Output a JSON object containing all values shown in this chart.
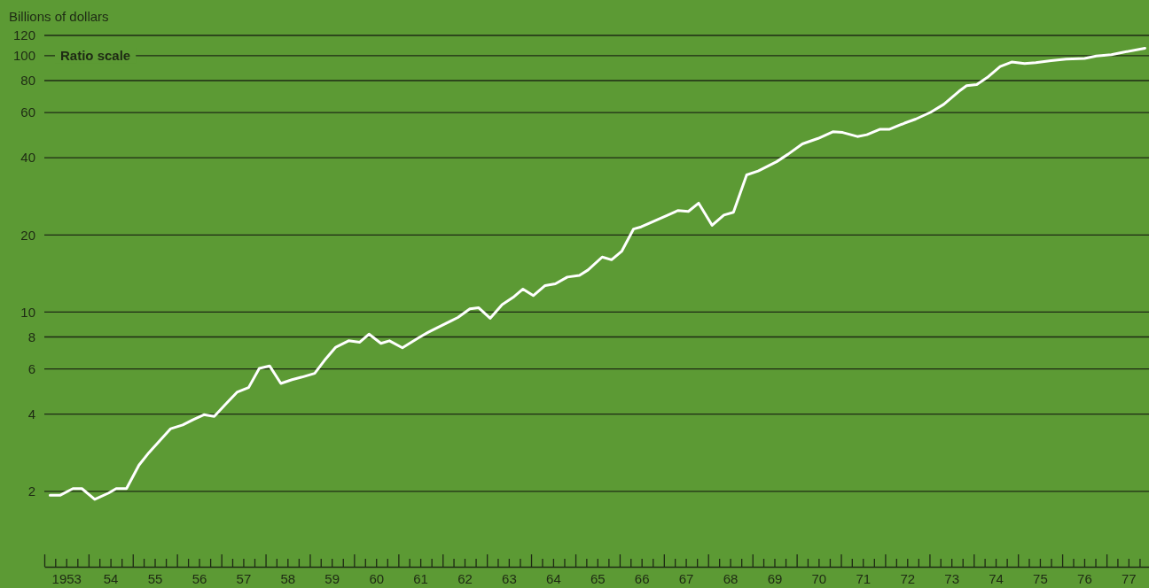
{
  "chart_data": {
    "type": "line",
    "ylabel": "Billions of dollars",
    "annotations": [
      "Ratio scale"
    ],
    "log": true,
    "grid": "y",
    "marker": "none",
    "line_style": "solid",
    "xlim": [
      "1953-01-01",
      "1978-01-01"
    ],
    "ylim": [
      1,
      120
    ],
    "yticks": [
      2,
      4,
      6,
      8,
      10,
      20,
      40,
      60,
      80,
      100,
      120
    ],
    "xticks": [
      {
        "value": "1953-01-01",
        "label": null
      },
      {
        "value": "1953-04-01",
        "label": null
      },
      {
        "value": "1953-07-01",
        "label": "1953"
      },
      {
        "value": "1953-10-01",
        "label": null
      },
      {
        "value": "1954-01-01",
        "label": null
      },
      {
        "value": "1954-04-01",
        "label": null
      },
      {
        "value": "1954-07-01",
        "label": "54"
      },
      {
        "value": "1954-10-01",
        "label": null
      },
      {
        "value": "1955-01-01",
        "label": null
      },
      {
        "value": "1955-04-01",
        "label": null
      },
      {
        "value": "1955-07-01",
        "label": "55"
      },
      {
        "value": "1955-10-01",
        "label": null
      },
      {
        "value": "1956-01-01",
        "label": null
      },
      {
        "value": "1956-04-01",
        "label": null
      },
      {
        "value": "1956-07-01",
        "label": "56"
      },
      {
        "value": "1956-10-01",
        "label": null
      },
      {
        "value": "1957-01-01",
        "label": null
      },
      {
        "value": "1957-04-01",
        "label": null
      },
      {
        "value": "1957-07-01",
        "label": "57"
      },
      {
        "value": "1957-10-01",
        "label": null
      },
      {
        "value": "1958-01-01",
        "label": null
      },
      {
        "value": "1958-04-01",
        "label": null
      },
      {
        "value": "1958-07-01",
        "label": "58"
      },
      {
        "value": "1958-10-01",
        "label": null
      },
      {
        "value": "1959-01-01",
        "label": null
      },
      {
        "value": "1959-04-01",
        "label": null
      },
      {
        "value": "1959-07-01",
        "label": "59"
      },
      {
        "value": "1959-10-01",
        "label": null
      },
      {
        "value": "1960-01-01",
        "label": null
      },
      {
        "value": "1960-04-01",
        "label": null
      },
      {
        "value": "1960-07-01",
        "label": "60"
      },
      {
        "value": "1960-10-01",
        "label": null
      },
      {
        "value": "1961-01-01",
        "label": null
      },
      {
        "value": "1961-04-01",
        "label": null
      },
      {
        "value": "1961-07-01",
        "label": "61"
      },
      {
        "value": "1961-10-01",
        "label": null
      },
      {
        "value": "1962-01-01",
        "label": null
      },
      {
        "value": "1962-04-01",
        "label": null
      },
      {
        "value": "1962-07-01",
        "label": "62"
      },
      {
        "value": "1962-10-01",
        "label": null
      },
      {
        "value": "1963-01-01",
        "label": null
      },
      {
        "value": "1963-04-01",
        "label": null
      },
      {
        "value": "1963-07-01",
        "label": "63"
      },
      {
        "value": "1963-10-01",
        "label": null
      },
      {
        "value": "1964-01-01",
        "label": null
      },
      {
        "value": "1964-04-01",
        "label": null
      },
      {
        "value": "1964-07-01",
        "label": "64"
      },
      {
        "value": "1964-10-01",
        "label": null
      },
      {
        "value": "1965-01-01",
        "label": null
      },
      {
        "value": "1965-04-01",
        "label": null
      },
      {
        "value": "1965-07-01",
        "label": "65"
      },
      {
        "value": "1965-10-01",
        "label": null
      },
      {
        "value": "1966-01-01",
        "label": null
      },
      {
        "value": "1966-04-01",
        "label": null
      },
      {
        "value": "1966-07-01",
        "label": "66"
      },
      {
        "value": "1966-10-01",
        "label": null
      },
      {
        "value": "1967-01-01",
        "label": null
      },
      {
        "value": "1967-04-01",
        "label": null
      },
      {
        "value": "1967-07-01",
        "label": "67"
      },
      {
        "value": "1967-10-01",
        "label": null
      },
      {
        "value": "1968-01-01",
        "label": null
      },
      {
        "value": "1968-04-01",
        "label": null
      },
      {
        "value": "1968-07-01",
        "label": "68"
      },
      {
        "value": "1968-10-01",
        "label": null
      },
      {
        "value": "1969-01-01",
        "label": null
      },
      {
        "value": "1969-04-01",
        "label": null
      },
      {
        "value": "1969-07-01",
        "label": "69"
      },
      {
        "value": "1969-10-01",
        "label": null
      },
      {
        "value": "1970-01-01",
        "label": null
      },
      {
        "value": "1970-04-01",
        "label": null
      },
      {
        "value": "1970-07-01",
        "label": "70"
      },
      {
        "value": "1970-10-01",
        "label": null
      },
      {
        "value": "1971-01-01",
        "label": null
      },
      {
        "value": "1971-04-01",
        "label": null
      },
      {
        "value": "1971-07-01",
        "label": "71"
      },
      {
        "value": "1971-10-01",
        "label": null
      },
      {
        "value": "1972-01-01",
        "label": null
      },
      {
        "value": "1972-04-01",
        "label": null
      },
      {
        "value": "1972-07-01",
        "label": "72"
      },
      {
        "value": "1972-10-01",
        "label": null
      },
      {
        "value": "1973-01-01",
        "label": null
      },
      {
        "value": "1973-04-01",
        "label": null
      },
      {
        "value": "1973-07-01",
        "label": "73"
      },
      {
        "value": "1973-10-01",
        "label": null
      },
      {
        "value": "1974-01-01",
        "label": null
      },
      {
        "value": "1974-04-01",
        "label": null
      },
      {
        "value": "1974-07-01",
        "label": "74"
      },
      {
        "value": "1974-10-01",
        "label": null
      },
      {
        "value": "1975-01-01",
        "label": null
      },
      {
        "value": "1975-04-01",
        "label": null
      },
      {
        "value": "1975-07-01",
        "label": "75"
      },
      {
        "value": "1975-10-01",
        "label": null
      },
      {
        "value": "1976-01-01",
        "label": null
      },
      {
        "value": "1976-04-01",
        "label": null
      },
      {
        "value": "1976-07-01",
        "label": "76"
      },
      {
        "value": "1976-10-01",
        "label": null
      },
      {
        "value": "1977-01-01",
        "label": null
      },
      {
        "value": "1977-04-01",
        "label": null
      },
      {
        "value": "1977-07-01",
        "label": "77"
      },
      {
        "value": "1977-10-01",
        "label": null
      }
    ],
    "x": [
      "1953-02-17",
      "1953-05-10",
      "1953-08-25",
      "1953-11-07",
      "1954-02-21",
      "1954-06-16",
      "1954-08-17",
      "1954-11-10",
      "1955-02-21",
      "1955-05-14",
      "1955-11-10",
      "1956-02-17",
      "1956-05-14",
      "1956-08-10",
      "1956-11-03",
      "1957-02-03",
      "1957-05-10",
      "1957-08-14",
      "1957-11-10",
      "1958-02-03",
      "1958-05-07",
      "1958-08-07",
      "1958-10-28",
      "1959-02-10",
      "1959-05-03",
      "1959-08-03",
      "1959-11-17",
      "1960-02-17",
      "1960-05-03",
      "1960-08-10",
      "1960-10-19",
      "1961-02-03",
      "1961-06-13",
      "1961-09-05",
      "1962-01-04",
      "1962-05-07",
      "1962-08-14",
      "1962-10-26",
      "1963-01-28",
      "1963-05-07",
      "1963-08-14",
      "1963-10-26",
      "1964-01-19",
      "1964-04-26",
      "1964-07-19",
      "1964-10-26",
      "1965-02-03",
      "1965-04-15",
      "1965-08-10",
      "1965-10-26",
      "1966-01-19",
      "1966-04-26",
      "1966-06-27",
      "1966-10-26",
      "1967-02-03",
      "1967-04-26",
      "1967-07-22",
      "1967-10-15",
      "1968-02-03",
      "1968-05-10",
      "1968-07-28",
      "1968-11-14",
      "1969-02-17",
      "1969-07-19",
      "1969-10-22",
      "1970-02-17",
      "1970-06-27",
      "1970-10-26",
      "1971-01-15",
      "1971-05-17",
      "1971-08-03",
      "1971-11-21",
      "1972-02-07",
      "1972-06-09",
      "1972-09-09",
      "1973-01-11",
      "1973-04-28",
      "1973-09-02",
      "1973-11-03",
      "1974-01-26",
      "1974-04-22",
      "1974-08-07",
      "1974-11-10",
      "1975-02-25",
      "1975-05-28",
      "1975-10-01",
      "1976-02-03",
      "1976-07-04",
      "1976-10-08",
      "1977-02-10",
      "1977-05-10",
      "1977-11-14"
    ],
    "series": [
      {
        "color": "#ffffff",
        "values": [
          1.93,
          1.93,
          2.05,
          2.05,
          1.86,
          1.97,
          2.05,
          2.05,
          2.53,
          2.83,
          3.51,
          3.63,
          3.81,
          3.98,
          3.92,
          4.36,
          4.87,
          5.08,
          6.03,
          6.17,
          5.27,
          5.45,
          5.58,
          5.77,
          6.49,
          7.3,
          7.73,
          7.63,
          8.21,
          7.55,
          7.73,
          7.26,
          7.92,
          8.35,
          8.92,
          9.53,
          10.3,
          10.4,
          9.46,
          10.7,
          11.5,
          12.3,
          11.6,
          12.7,
          12.9,
          13.7,
          13.9,
          14.6,
          16.4,
          16.0,
          17.3,
          21.1,
          21.5,
          22.8,
          23.9,
          24.9,
          24.7,
          26.6,
          21.8,
          23.9,
          24.5,
          34.3,
          35.5,
          38.6,
          41.3,
          45.3,
          47.6,
          50.5,
          50.2,
          48.4,
          49.2,
          51.7,
          51.7,
          54.6,
          56.6,
          60.2,
          64.6,
          72.7,
          76.4,
          77.2,
          82.2,
          90.7,
          94.5,
          93.2,
          93.9,
          95.7,
          97.0,
          97.6,
          99.7,
          101,
          103,
          107
        ]
      }
    ]
  }
}
